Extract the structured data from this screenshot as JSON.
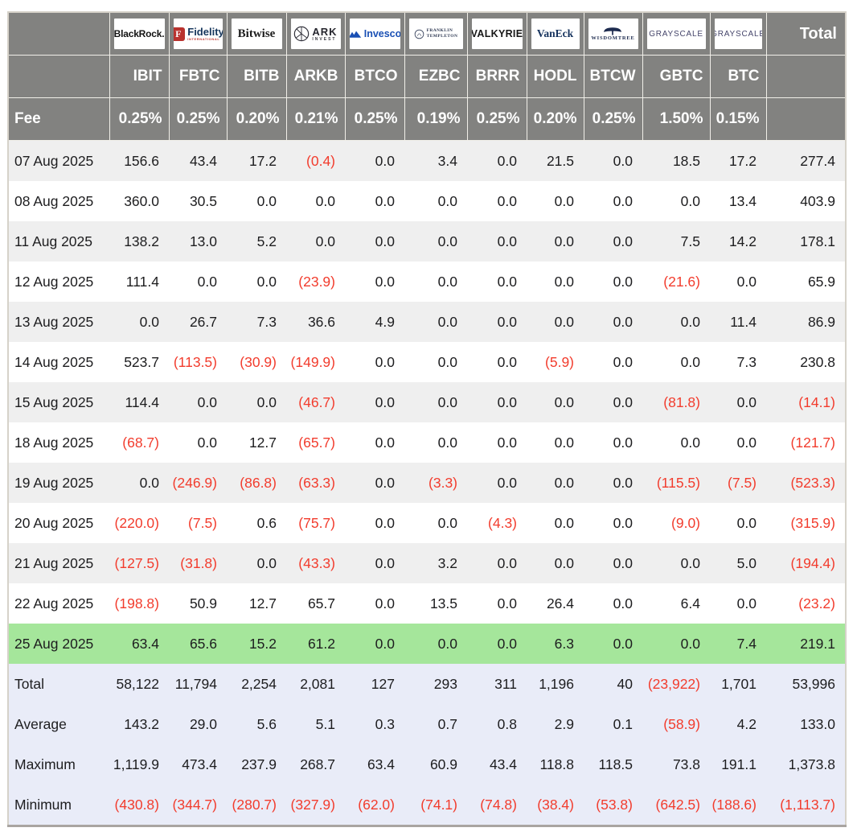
{
  "chart_data": {
    "type": "table",
    "fee_label": "Fee",
    "total_label": "Total",
    "columns": [
      {
        "provider": "BlackRock.",
        "ticker": "IBIT",
        "fee": "0.25%",
        "logo": "blackrock"
      },
      {
        "provider": "Fidelity",
        "provider_sub": "INTERNATIONAL",
        "icon_letter": "F",
        "ticker": "FBTC",
        "fee": "0.25%",
        "logo": "fidelity"
      },
      {
        "provider": "Bitwise",
        "ticker": "BITB",
        "fee": "0.20%",
        "logo": "bitwise"
      },
      {
        "provider": "ARK",
        "provider_sub": "INVEST",
        "ticker": "ARKB",
        "fee": "0.21%",
        "logo": "ark"
      },
      {
        "provider": "Invesco",
        "ticker": "BTCO",
        "fee": "0.25%",
        "logo": "invesco"
      },
      {
        "provider": "FRANKLIN",
        "provider_sub": "TEMPLETON",
        "ticker": "EZBC",
        "fee": "0.19%",
        "logo": "franklin"
      },
      {
        "provider": "VALKYRIE",
        "ticker": "BRRR",
        "fee": "0.25%",
        "logo": "valkyrie"
      },
      {
        "provider": "VanEck",
        "ticker": "HODL",
        "fee": "0.20%",
        "logo": "vaneck"
      },
      {
        "provider": "WISDOMTREE",
        "ticker": "BTCW",
        "fee": "0.25%",
        "logo": "wisdomtree"
      },
      {
        "provider": "GRAYSCALE",
        "ticker": "GBTC",
        "fee": "1.50%",
        "logo": "grayscale"
      },
      {
        "provider": "GRAYSCALE",
        "ticker": "BTC",
        "fee": "0.15%",
        "logo": "grayscale"
      }
    ],
    "rows": [
      {
        "date": "07 Aug 2025",
        "highlight": false,
        "values": [
          "156.6",
          "43.4",
          "17.2",
          "(0.4)",
          "0.0",
          "3.4",
          "0.0",
          "21.5",
          "0.0",
          "18.5",
          "17.2",
          "277.4"
        ]
      },
      {
        "date": "08 Aug 2025",
        "highlight": false,
        "values": [
          "360.0",
          "30.5",
          "0.0",
          "0.0",
          "0.0",
          "0.0",
          "0.0",
          "0.0",
          "0.0",
          "0.0",
          "13.4",
          "403.9"
        ]
      },
      {
        "date": "11 Aug 2025",
        "highlight": false,
        "values": [
          "138.2",
          "13.0",
          "5.2",
          "0.0",
          "0.0",
          "0.0",
          "0.0",
          "0.0",
          "0.0",
          "7.5",
          "14.2",
          "178.1"
        ]
      },
      {
        "date": "12 Aug 2025",
        "highlight": false,
        "values": [
          "111.4",
          "0.0",
          "0.0",
          "(23.9)",
          "0.0",
          "0.0",
          "0.0",
          "0.0",
          "0.0",
          "(21.6)",
          "0.0",
          "65.9"
        ]
      },
      {
        "date": "13 Aug 2025",
        "highlight": false,
        "values": [
          "0.0",
          "26.7",
          "7.3",
          "36.6",
          "4.9",
          "0.0",
          "0.0",
          "0.0",
          "0.0",
          "0.0",
          "11.4",
          "86.9"
        ]
      },
      {
        "date": "14 Aug 2025",
        "highlight": false,
        "values": [
          "523.7",
          "(113.5)",
          "(30.9)",
          "(149.9)",
          "0.0",
          "0.0",
          "0.0",
          "(5.9)",
          "0.0",
          "0.0",
          "7.3",
          "230.8"
        ]
      },
      {
        "date": "15 Aug 2025",
        "highlight": false,
        "values": [
          "114.4",
          "0.0",
          "0.0",
          "(46.7)",
          "0.0",
          "0.0",
          "0.0",
          "0.0",
          "0.0",
          "(81.8)",
          "0.0",
          "(14.1)"
        ]
      },
      {
        "date": "18 Aug 2025",
        "highlight": false,
        "values": [
          "(68.7)",
          "0.0",
          "12.7",
          "(65.7)",
          "0.0",
          "0.0",
          "0.0",
          "0.0",
          "0.0",
          "0.0",
          "0.0",
          "(121.7)"
        ]
      },
      {
        "date": "19 Aug 2025",
        "highlight": false,
        "values": [
          "0.0",
          "(246.9)",
          "(86.8)",
          "(63.3)",
          "0.0",
          "(3.3)",
          "0.0",
          "0.0",
          "0.0",
          "(115.5)",
          "(7.5)",
          "(523.3)"
        ]
      },
      {
        "date": "20 Aug 2025",
        "highlight": false,
        "values": [
          "(220.0)",
          "(7.5)",
          "0.6",
          "(75.7)",
          "0.0",
          "0.0",
          "(4.3)",
          "0.0",
          "0.0",
          "(9.0)",
          "0.0",
          "(315.9)"
        ]
      },
      {
        "date": "21 Aug 2025",
        "highlight": false,
        "values": [
          "(127.5)",
          "(31.8)",
          "0.0",
          "(43.3)",
          "0.0",
          "3.2",
          "0.0",
          "0.0",
          "0.0",
          "0.0",
          "5.0",
          "(194.4)"
        ]
      },
      {
        "date": "22 Aug 2025",
        "highlight": false,
        "values": [
          "(198.8)",
          "50.9",
          "12.7",
          "65.7",
          "0.0",
          "13.5",
          "0.0",
          "26.4",
          "0.0",
          "6.4",
          "0.0",
          "(23.2)"
        ]
      },
      {
        "date": "25 Aug 2025",
        "highlight": true,
        "values": [
          "63.4",
          "65.6",
          "15.2",
          "61.2",
          "0.0",
          "0.0",
          "0.0",
          "6.3",
          "0.0",
          "0.0",
          "7.4",
          "219.1"
        ]
      }
    ],
    "summary_rows": [
      {
        "label": "Total",
        "values": [
          "58,122",
          "11,794",
          "2,254",
          "2,081",
          "127",
          "293",
          "311",
          "1,196",
          "40",
          "(23,922)",
          "1,701",
          "53,996"
        ]
      },
      {
        "label": "Average",
        "values": [
          "143.2",
          "29.0",
          "5.6",
          "5.1",
          "0.3",
          "0.7",
          "0.8",
          "2.9",
          "0.1",
          "(58.9)",
          "4.2",
          "133.0"
        ]
      },
      {
        "label": "Maximum",
        "values": [
          "1,119.9",
          "473.4",
          "237.9",
          "268.7",
          "63.4",
          "60.9",
          "43.4",
          "118.8",
          "118.5",
          "73.8",
          "191.1",
          "1,373.8"
        ]
      },
      {
        "label": "Minimum",
        "values": [
          "(430.8)",
          "(344.7)",
          "(280.7)",
          "(327.9)",
          "(62.0)",
          "(74.1)",
          "(74.8)",
          "(38.4)",
          "(53.8)",
          "(642.5)",
          "(188.6)",
          "(1,113.7)"
        ]
      }
    ],
    "colors": {
      "header_bg": "#828280",
      "negative": "#f23c2d",
      "highlight_row": "#a5e69b",
      "summary_bg": "#e9ecf8",
      "alt_row": "#efefef"
    }
  }
}
